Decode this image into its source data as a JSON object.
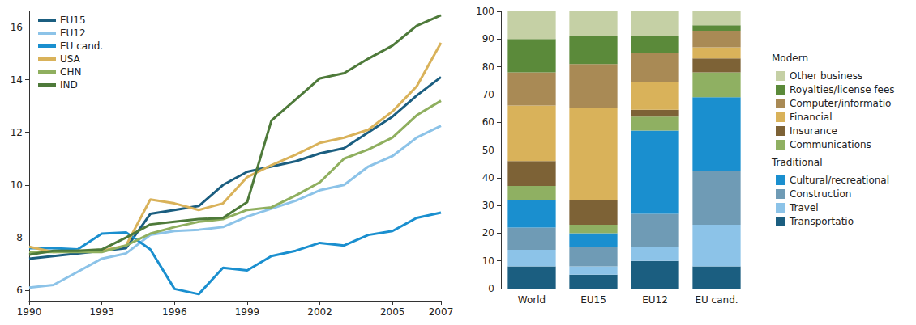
{
  "chart_data": [
    {
      "type": "line",
      "x": [
        1990,
        1991,
        1992,
        1993,
        1994,
        1995,
        1996,
        1997,
        1998,
        1999,
        2000,
        2001,
        2002,
        2003,
        2004,
        2005,
        2006,
        2007
      ],
      "xlim": [
        1990,
        2007
      ],
      "xticks": [
        1990,
        1993,
        1996,
        1999,
        2002,
        2005,
        2007
      ],
      "ylim": [
        5.6,
        16.6
      ],
      "yticks": [
        6,
        8,
        10,
        12,
        14,
        16
      ],
      "grid": false,
      "legend": "top-left",
      "series": [
        {
          "name": "EU15",
          "color": "#1b5e80",
          "values": [
            7.2,
            7.3,
            7.4,
            7.5,
            7.6,
            8.9,
            9.05,
            9.2,
            10.0,
            10.5,
            10.7,
            10.9,
            11.2,
            11.4,
            12.0,
            12.6,
            13.4,
            14.1
          ]
        },
        {
          "name": "EU12",
          "color": "#8cc3e8",
          "values": [
            6.1,
            6.2,
            6.7,
            7.2,
            7.4,
            8.1,
            8.25,
            8.3,
            8.4,
            8.8,
            9.1,
            9.4,
            9.8,
            10.0,
            10.7,
            11.1,
            11.8,
            12.25
          ]
        },
        {
          "name": "EU cand.",
          "color": "#1a8fcf",
          "values": [
            7.6,
            7.6,
            7.55,
            8.15,
            8.2,
            7.55,
            6.05,
            5.85,
            6.85,
            6.75,
            7.3,
            7.5,
            7.8,
            7.7,
            8.1,
            8.25,
            8.75,
            8.95
          ]
        },
        {
          "name": "USA",
          "color": "#d9b25a",
          "values": [
            7.65,
            7.45,
            7.5,
            7.5,
            7.7,
            9.45,
            9.3,
            9.05,
            9.3,
            10.3,
            10.75,
            11.15,
            11.6,
            11.8,
            12.1,
            12.8,
            13.75,
            15.4
          ]
        },
        {
          "name": "CHN",
          "color": "#8faf5f",
          "values": [
            7.45,
            7.45,
            7.45,
            7.45,
            7.7,
            8.15,
            8.4,
            8.6,
            8.7,
            9.05,
            9.15,
            9.6,
            10.1,
            11.0,
            11.35,
            11.8,
            12.65,
            13.2
          ]
        },
        {
          "name": "IND",
          "color": "#4e7a3a",
          "values": [
            7.35,
            7.5,
            7.5,
            7.55,
            8.0,
            8.5,
            8.6,
            8.7,
            8.75,
            9.35,
            12.45,
            13.25,
            14.05,
            14.25,
            14.8,
            15.3,
            16.05,
            16.45
          ]
        }
      ]
    },
    {
      "type": "bar",
      "stacked": true,
      "categories": [
        "World",
        "EU15",
        "EU12",
        "EU cand."
      ],
      "ylim": [
        0,
        100
      ],
      "yticks": [
        0,
        10,
        20,
        30,
        40,
        50,
        60,
        70,
        80,
        90,
        100
      ],
      "grid": false,
      "legend": "right",
      "groups": [
        {
          "name": "Modern",
          "series": [
            "Other business",
            "Royalties/license fees",
            "Computer/informatio",
            "Financial",
            "Insurance",
            "Communications"
          ]
        },
        {
          "name": "Traditional",
          "series": [
            "Cultural/recreational",
            "Construction",
            "Travel",
            "Transportatio"
          ]
        }
      ],
      "series": [
        {
          "name": "Transportatio",
          "color": "#1b5e80",
          "values": [
            8,
            5,
            10,
            8
          ]
        },
        {
          "name": "Travel",
          "color": "#8cc3e8",
          "values": [
            6,
            3,
            5,
            15
          ]
        },
        {
          "name": "Construction",
          "color": "#6f9bb5",
          "values": [
            8,
            7,
            12,
            19.5
          ]
        },
        {
          "name": "Cultural/recreational",
          "color": "#1a8fcf",
          "values": [
            10,
            5,
            30,
            26.5
          ]
        },
        {
          "name": "Communications",
          "color": "#8fb062",
          "values": [
            5,
            3,
            5,
            9
          ]
        },
        {
          "name": "Insurance",
          "color": "#7d6236",
          "values": [
            9,
            9,
            2.5,
            5
          ]
        },
        {
          "name": "Financial",
          "color": "#d9b25a",
          "values": [
            20,
            33,
            10,
            4
          ]
        },
        {
          "name": "Computer/informatio",
          "color": "#a98a55",
          "values": [
            12,
            16,
            10.5,
            6
          ]
        },
        {
          "name": "Royalties/license fees",
          "color": "#5b8a3a",
          "values": [
            12,
            10,
            6,
            2
          ]
        },
        {
          "name": "Other business",
          "color": "#c5d0a5",
          "values": [
            10,
            9,
            9,
            5
          ]
        }
      ]
    }
  ]
}
